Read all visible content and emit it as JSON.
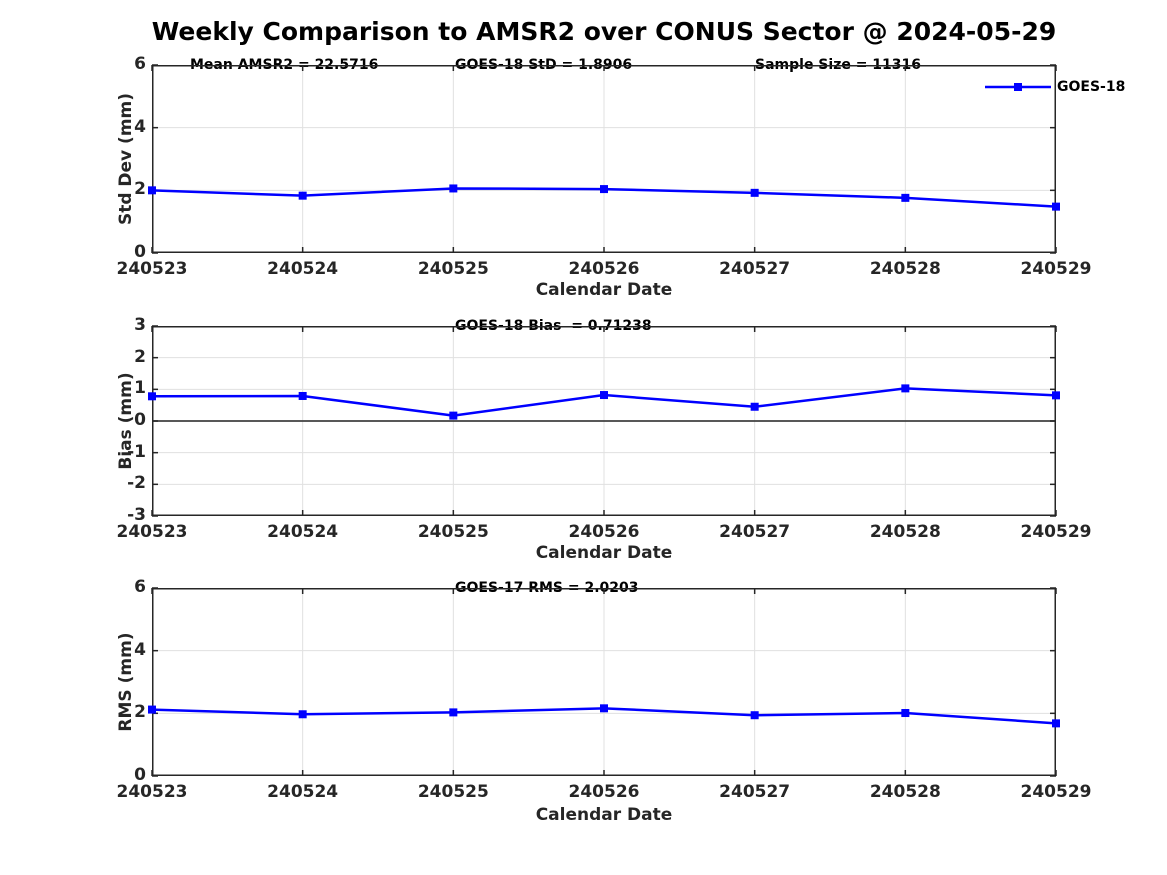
{
  "title": "Weekly Comparison to AMSR2 over CONUS Sector @ 2024-05-29",
  "colors": {
    "line": "#0000FF",
    "axis": "#262626",
    "grid": "#E0E0E0",
    "zero_line": "#404040",
    "text": "#000000"
  },
  "legend": {
    "label": "GOES-18",
    "position": "top-right"
  },
  "chart_data": [
    {
      "type": "line",
      "categories": [
        "240523",
        "240524",
        "240525",
        "240526",
        "240527",
        "240528",
        "240529"
      ],
      "series": [
        {
          "name": "GOES-18",
          "values": [
            2.0,
            1.83,
            2.06,
            2.04,
            1.92,
            1.76,
            1.48
          ]
        }
      ],
      "annotations": [
        "Mean AMSR2 = 22.5716",
        "GOES-18 StD = 1.8906",
        "Sample Size = 11316"
      ],
      "xlabel": "Calendar Date",
      "ylabel": "Std Dev (mm)",
      "ylim": [
        0,
        6
      ],
      "yticks": [
        0,
        2,
        4,
        6
      ],
      "grid": true,
      "marker": "square",
      "legend_entries": [
        "GOES-18"
      ]
    },
    {
      "type": "line",
      "categories": [
        "240523",
        "240524",
        "240525",
        "240526",
        "240527",
        "240528",
        "240529"
      ],
      "series": [
        {
          "name": "GOES-18",
          "values": [
            0.78,
            0.79,
            0.17,
            0.82,
            0.45,
            1.03,
            0.81
          ]
        }
      ],
      "annotations": [
        "GOES-18 Bias  = 0.71238"
      ],
      "xlabel": "Calendar Date",
      "ylabel": "Bias (mm)",
      "ylim": [
        -3,
        3
      ],
      "yticks": [
        -3,
        -2,
        -1,
        0,
        1,
        2,
        3
      ],
      "grid": true,
      "zero_line": true,
      "marker": "square"
    },
    {
      "type": "line",
      "categories": [
        "240523",
        "240524",
        "240525",
        "240526",
        "240527",
        "240528",
        "240529"
      ],
      "series": [
        {
          "name": "GOES-18",
          "values": [
            2.12,
            1.97,
            2.03,
            2.16,
            1.94,
            2.01,
            1.68
          ]
        }
      ],
      "annotations": [
        "GOES-17 RMS = 2.0203"
      ],
      "xlabel": "Calendar Date",
      "ylabel": "RMS (mm)",
      "ylim": [
        0,
        6
      ],
      "yticks": [
        0,
        2,
        4,
        6
      ],
      "grid": true,
      "marker": "square"
    }
  ]
}
